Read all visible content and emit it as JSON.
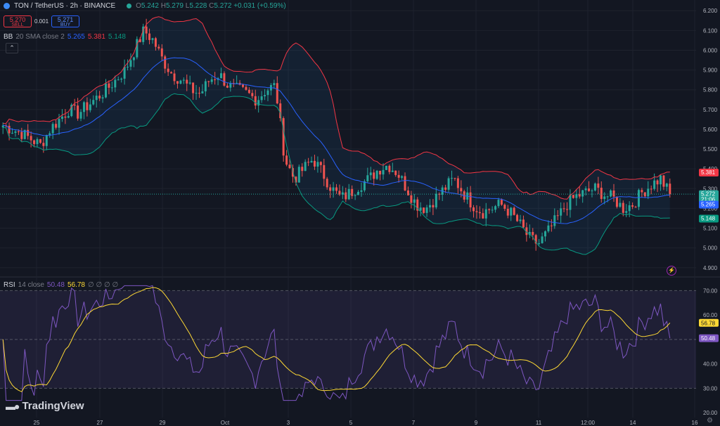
{
  "header": {
    "symbol": "TON / TetherUS · 2h · BINANCE",
    "ohlc": {
      "o_label": "O",
      "o": "5.242",
      "h_label": "H",
      "h": "5.279",
      "l_label": "L",
      "l": "5.228",
      "c_label": "C",
      "c": "5.272",
      "chg": "+0.031 (+0.59%)"
    }
  },
  "trade": {
    "sell_price": "5.270",
    "sell_label": "SELL",
    "spread": "0.001",
    "buy_price": "5.271",
    "buy_label": "BUY"
  },
  "bb_legend": {
    "name": "BB",
    "params": "20 SMA close 2",
    "basis": "5.265",
    "upper": "5.381",
    "lower": "5.148"
  },
  "rsi_legend": {
    "name": "RSI",
    "params": "14 close",
    "rsi": "50.48",
    "ma": "56.78",
    "extra": "∅ ∅ ∅ ∅"
  },
  "logo": {
    "text": "TradingView"
  },
  "colors": {
    "bg": "#131722",
    "up": "#26a69a",
    "down": "#ef5350",
    "bb_upper": "#f23645",
    "bb_basis": "#2962ff",
    "bb_lower": "#089981",
    "rsi_line": "#7e57c2",
    "rsi_ma": "#fdd835",
    "grid": "#1e222d",
    "axis_text": "#b2b5be"
  },
  "chart_data": [
    {
      "type": "candlestick",
      "title": "TON / TetherUS · 2h · BINANCE",
      "ylim": [
        4.86,
        6.24
      ],
      "y_ticks": [
        "6.200",
        "6.100",
        "6.000",
        "5.900",
        "5.800",
        "5.700",
        "5.600",
        "5.500",
        "5.400",
        "5.300",
        "5.200",
        "5.100",
        "5.000",
        "4.900"
      ],
      "x_ticks": [
        "25",
        "27",
        "29",
        "Oct",
        "3",
        "5",
        "7",
        "9",
        "11",
        "12:00",
        "14",
        "16"
      ],
      "close_path": [
        5.62,
        5.6,
        5.58,
        5.55,
        5.52,
        5.6,
        5.65,
        5.7,
        5.68,
        5.72,
        5.76,
        5.8,
        5.85,
        5.9,
        6.0,
        6.1,
        6.05,
        5.95,
        5.88,
        5.85,
        5.8,
        5.78,
        5.85,
        5.88,
        5.82,
        5.8,
        5.78,
        5.75,
        5.8,
        5.82,
        5.45,
        5.35,
        5.4,
        5.45,
        5.38,
        5.3,
        5.25,
        5.28,
        5.32,
        5.35,
        5.4,
        5.42,
        5.38,
        5.3,
        5.22,
        5.2,
        5.25,
        5.3,
        5.35,
        5.28,
        5.22,
        5.18,
        5.2,
        5.22,
        5.18,
        5.12,
        5.05,
        5.02,
        5.08,
        5.15,
        5.22,
        5.26,
        5.28,
        5.3,
        5.27,
        5.25,
        5.2,
        5.22,
        5.28,
        5.32,
        5.35,
        5.27
      ],
      "bb": {
        "upper_last": 5.381,
        "basis_last": 5.265,
        "lower_last": 5.148
      },
      "labels": {
        "upper": "5.381",
        "last": "5.272",
        "countdown": "21:06",
        "basis": "5.265",
        "lower": "5.148"
      }
    },
    {
      "type": "line",
      "title": "RSI 14 close",
      "ylim": [
        18,
        75
      ],
      "y_ticks": [
        "70.00",
        "60.00",
        "50.00",
        "40.00",
        "30.00",
        "20.00"
      ],
      "bands": [
        30,
        70
      ],
      "mid": 50,
      "series": [
        {
          "name": "RSI",
          "last": 50.48
        },
        {
          "name": "RSI-based MA",
          "last": 56.78
        }
      ],
      "labels": {
        "ma": "56.78",
        "rsi": "50.48"
      }
    }
  ]
}
